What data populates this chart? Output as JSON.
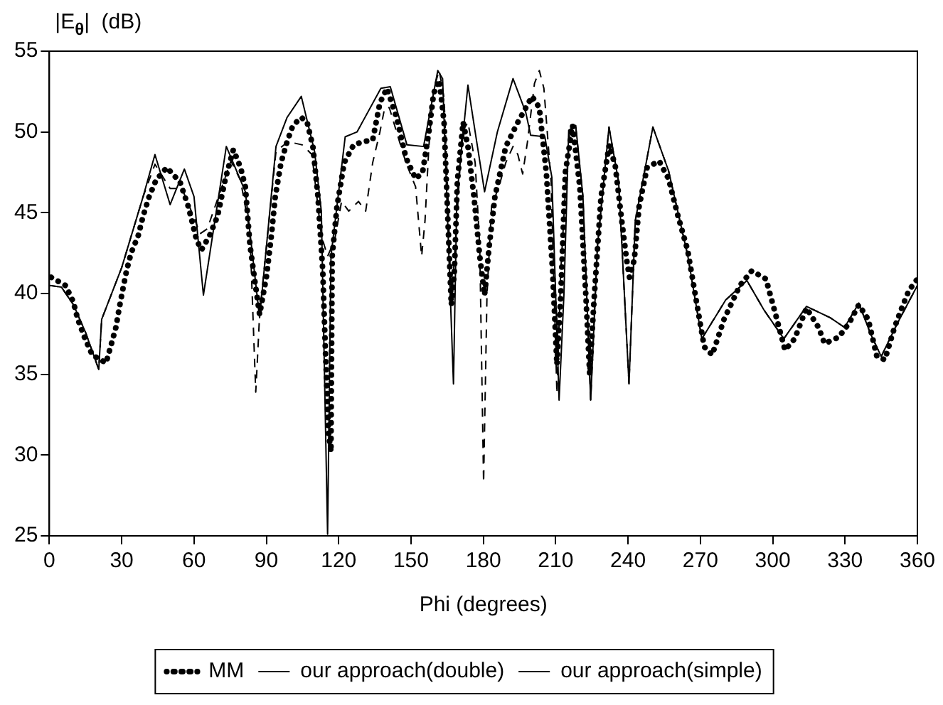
{
  "chart_data": {
    "type": "line",
    "xlabel": "Phi (degrees)",
    "ylabel": "|E$_{θ}$|  (dB)",
    "xlim": [
      0,
      360
    ],
    "xticks": [
      0,
      30,
      60,
      90,
      120,
      150,
      180,
      210,
      240,
      270,
      300,
      330,
      360
    ],
    "ylim": [
      25,
      55
    ],
    "yticks": [
      25,
      30,
      35,
      40,
      45,
      50,
      55
    ],
    "grid": false,
    "legend": "bottom",
    "marker": "none",
    "series": [
      {
        "name": "MM",
        "color": "#000000",
        "line_style": "dotted",
        "x": [
          0.8,
          6.7,
          9.9,
          11.8,
          14.8,
          17.8,
          23.5,
          25.6,
          27.6,
          29,
          30.4,
          32,
          33.9,
          36.9,
          38.9,
          41.4,
          44.2,
          48.7,
          54.2,
          57.6,
          61.1,
          63.1,
          66.5,
          69.8,
          73,
          76.3,
          79.3,
          81.3,
          83.2,
          85.2,
          87.2,
          90.1,
          92.1,
          93.7,
          96.1,
          98.6,
          101,
          104.5,
          106.9,
          109.3,
          111.4,
          113.4,
          114.4,
          115.8,
          116.8,
          117.3,
          119.3,
          122.3,
          126.2,
          130.2,
          134.1,
          137.1,
          140,
          144,
          147.9,
          151.9,
          154.8,
          157.4,
          159.4,
          161.7,
          163.7,
          165.3,
          166.7,
          168,
          169.2,
          171.6,
          173.6,
          176.1,
          178.5,
          180.5,
          182.4,
          184.8,
          189.3,
          194.3,
          200.2,
          203.2,
          206.1,
          208.7,
          210.5,
          212.1,
          214,
          217,
          220,
          222.5,
          224.1,
          225.9,
          228.8,
          232.2,
          234.7,
          237.4,
          239.4,
          240.6,
          242.6,
          244.6,
          247.9,
          252.9,
          256.8,
          260.7,
          264.7,
          268.6,
          271.6,
          274.9,
          279.8,
          286.4,
          291.3,
          297.2,
          301.2,
          305.1,
          309.1,
          314,
          319,
          321.5,
          327.4,
          331.8,
          335.7,
          339.6,
          343.2,
          346.5,
          350.5,
          353.5,
          356.5,
          360
        ],
        "values": [
          41.0,
          40.5,
          39.5,
          38.4,
          37.2,
          36.2,
          35.7,
          36.8,
          37.9,
          39.1,
          40.2,
          41.4,
          42.5,
          43.6,
          44.8,
          46.0,
          47.0,
          47.8,
          46.9,
          45.4,
          43.3,
          42.7,
          43.6,
          44.8,
          47.1,
          48.9,
          47.8,
          46.6,
          43.0,
          40.8,
          38.7,
          41.1,
          43.6,
          46.0,
          48.1,
          49.4,
          50.4,
          50.9,
          50.6,
          49.1,
          46.0,
          41.4,
          36.9,
          31.4,
          30.2,
          42.3,
          45.4,
          48.1,
          49.2,
          49.4,
          49.5,
          51.8,
          52.7,
          50.9,
          48.4,
          47.1,
          47.5,
          50.0,
          52.4,
          53.2,
          50.6,
          44.5,
          39.3,
          41.4,
          46.9,
          50.6,
          49.1,
          46.0,
          42.3,
          39.9,
          42.9,
          46.0,
          49.1,
          50.6,
          52.2,
          51.5,
          47.5,
          41.4,
          35.6,
          39.9,
          47.5,
          50.4,
          46.6,
          39.9,
          35.0,
          39.6,
          46.0,
          49.2,
          47.9,
          44.5,
          42.1,
          41.0,
          42.1,
          45.4,
          47.8,
          48.2,
          47.1,
          44.8,
          42.7,
          39.3,
          36.7,
          36.2,
          38.4,
          40.5,
          41.4,
          40.9,
          38.7,
          36.5,
          37.2,
          39.1,
          37.9,
          36.9,
          37.3,
          38.2,
          39.3,
          38.4,
          36.1,
          35.9,
          37.9,
          39.1,
          40.2,
          40.9
        ]
      },
      {
        "name": "our approach(double)",
        "color": "#000000",
        "line_style": "solid",
        "x": [
          0,
          5,
          10,
          15,
          20.5,
          21.7,
          30,
          38.9,
          43.8,
          50.1,
          56,
          60,
          63.9,
          73.4,
          81.3,
          87.2,
          94,
          98.6,
          104.5,
          110,
          112.8,
          115.4,
          116.8,
          122.7,
          127.6,
          137.5,
          141.4,
          148.3,
          155.2,
          161.1,
          163.1,
          167.6,
          169,
          173.6,
          176.6,
          180.5,
          185.8,
          192.3,
          197.6,
          199.6,
          205.5,
          208.4,
          211.4,
          213.4,
          215.4,
          218.3,
          221.3,
          224.5,
          227.3,
          232.1,
          236.1,
          240.4,
          243,
          250.3,
          256.8,
          264.7,
          270.6,
          280.5,
          289.3,
          296.3,
          304.6,
          314,
          323.9,
          329.8,
          335.7,
          340.6,
          345,
          351.5,
          360
        ],
        "values": [
          40.5,
          40.4,
          39.3,
          37.6,
          35.3,
          38.4,
          41.6,
          46.0,
          48.6,
          45.5,
          47.7,
          46.0,
          39.9,
          49.1,
          46.3,
          38.5,
          49.1,
          50.9,
          52.2,
          48.8,
          45.1,
          25.1,
          42.3,
          49.7,
          50.0,
          52.7,
          52.8,
          49.2,
          49.1,
          53.8,
          53.3,
          34.4,
          46.0,
          52.9,
          50.0,
          46.3,
          50.0,
          53.3,
          51.2,
          49.8,
          49.7,
          47.2,
          33.4,
          39.9,
          50.1,
          50.4,
          46.0,
          33.4,
          42.9,
          50.3,
          46.9,
          34.4,
          44.5,
          50.3,
          47.6,
          42.4,
          37.2,
          39.6,
          40.8,
          39.0,
          37.2,
          39.2,
          38.5,
          37.9,
          39.4,
          37.5,
          36.1,
          38.1,
          40.5
        ]
      },
      {
        "name": "our approach(simple)",
        "color": "#000000",
        "line_style": "dashed",
        "x": [
          0,
          5,
          10,
          15,
          20.5,
          21.7,
          30,
          38.9,
          43.8,
          50.1,
          55,
          60,
          62.5,
          65.5,
          75.3,
          79.3,
          83.2,
          84.6,
          85.6,
          86.2,
          87.2,
          94,
          99,
          104.9,
          108.9,
          112.8,
          115.4,
          118.3,
          121.2,
          124.2,
          128.2,
          131.2,
          134.1,
          137.1,
          139.1,
          141,
          144,
          147.9,
          151.9,
          154.4,
          155.8,
          157.4,
          159.4,
          161.7,
          163.7,
          165.3,
          166.7,
          168.6,
          171.2,
          173.6,
          176.6,
          178.5,
          180.1,
          181.5,
          183.4,
          186.4,
          189.3,
          192.3,
          194.3,
          196.3,
          198.3,
          201.2,
          203.2,
          205.1,
          208.1,
          210.5,
          212.1,
          214,
          216,
          218.3,
          221.3,
          224.5,
          227.3,
          232.1,
          236.1,
          240.4,
          243,
          250.3,
          256.8,
          264.7,
          270.6,
          280.5,
          289.3,
          296.3,
          304.6,
          314,
          323.9,
          329.8,
          335.7,
          340.6,
          345,
          351.5,
          360
        ],
        "values": [
          40.5,
          40.4,
          39.3,
          37.6,
          35.3,
          38.4,
          41.6,
          46.0,
          48.0,
          46.5,
          46.5,
          44.7,
          43.7,
          44.0,
          48.2,
          47.0,
          43.8,
          38.0,
          33.9,
          35.6,
          38.7,
          48.8,
          49.4,
          49.2,
          48.6,
          43.6,
          42.3,
          43.3,
          45.7,
          45.1,
          45.7,
          45.1,
          48.1,
          50.0,
          51.5,
          51.5,
          50.0,
          48.1,
          46.6,
          42.3,
          44.5,
          49.1,
          52.7,
          53.8,
          52.1,
          46.0,
          39.3,
          43.6,
          50.0,
          50.6,
          48.1,
          42.9,
          28.3,
          39.9,
          45.4,
          46.6,
          48.1,
          49.1,
          48.6,
          47.4,
          49.4,
          53.0,
          53.8,
          52.7,
          46.9,
          33.8,
          41.4,
          46.3,
          50.0,
          50.3,
          46.0,
          33.4,
          42.9,
          50.3,
          46.9,
          34.4,
          44.5,
          50.3,
          47.6,
          42.4,
          37.2,
          39.6,
          40.8,
          39.0,
          37.2,
          39.2,
          38.5,
          37.9,
          39.4,
          37.5,
          36.1,
          38.1,
          40.5
        ]
      }
    ]
  }
}
